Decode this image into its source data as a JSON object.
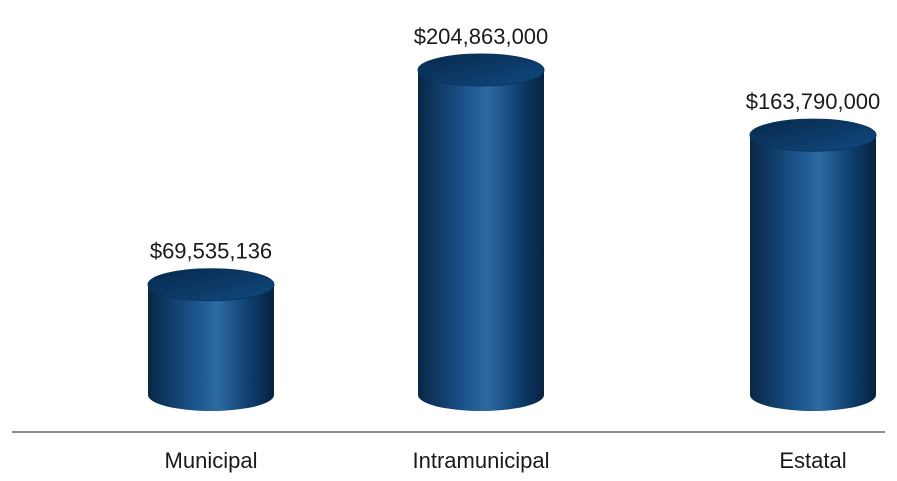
{
  "chart_data": {
    "type": "bar",
    "bar_style": "3d-cylinder",
    "categories": [
      "Municipal",
      "Intramunicipal",
      "Estatal"
    ],
    "values": [
      69535136,
      204863000,
      163790000
    ],
    "data_labels": [
      "$69,535,136",
      "$204,863,000",
      "$163,790,000"
    ],
    "title": "",
    "xlabel": "",
    "ylabel": "",
    "ylim": [
      0,
      240000000
    ],
    "grid": false,
    "legend": "none",
    "colors": {
      "bar_body": "#0e3f6e",
      "bar_highlight": "#2d6aa3",
      "bar_shadow": "#082746",
      "bar_top": "#0a3560",
      "axis_line": "#8a8a8a",
      "text": "#1a1a1a"
    }
  }
}
